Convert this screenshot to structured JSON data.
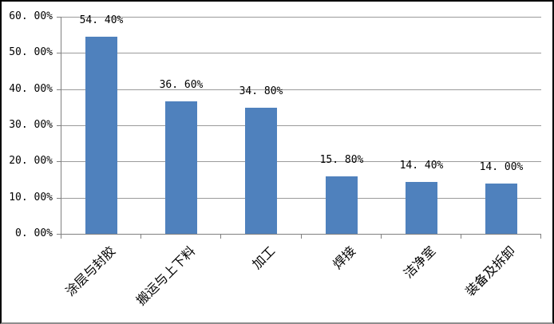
{
  "chart_data": {
    "type": "bar",
    "title": "",
    "categories": [
      "涂层与封胶",
      "搬运与上下料",
      "加工",
      "焊接",
      "洁净室",
      "装备及拆卸"
    ],
    "values": [
      54.4,
      36.6,
      34.8,
      15.8,
      14.4,
      14.0
    ],
    "data_labels": [
      "54. 40%",
      "36. 60%",
      "34. 80%",
      "15. 80%",
      "14. 40%",
      "14. 00%"
    ],
    "y_tick_labels": [
      "60. 00%",
      "50. 00%",
      "40. 00%",
      "30. 00%",
      "20. 00%",
      "10. 00%",
      "0. 00%"
    ],
    "ylim": [
      0,
      60
    ],
    "y_tick_step": 10,
    "grid": true,
    "legend_position": "none",
    "xlabel": "",
    "ylabel": "",
    "colors": {
      "bar": "#4f81bd",
      "gridline": "#9b9b9b",
      "axis": "#808080",
      "text": "#000000",
      "frame_border": "#000000",
      "frame_shadow": "#8e8e8e",
      "background": "#ffffff"
    }
  }
}
